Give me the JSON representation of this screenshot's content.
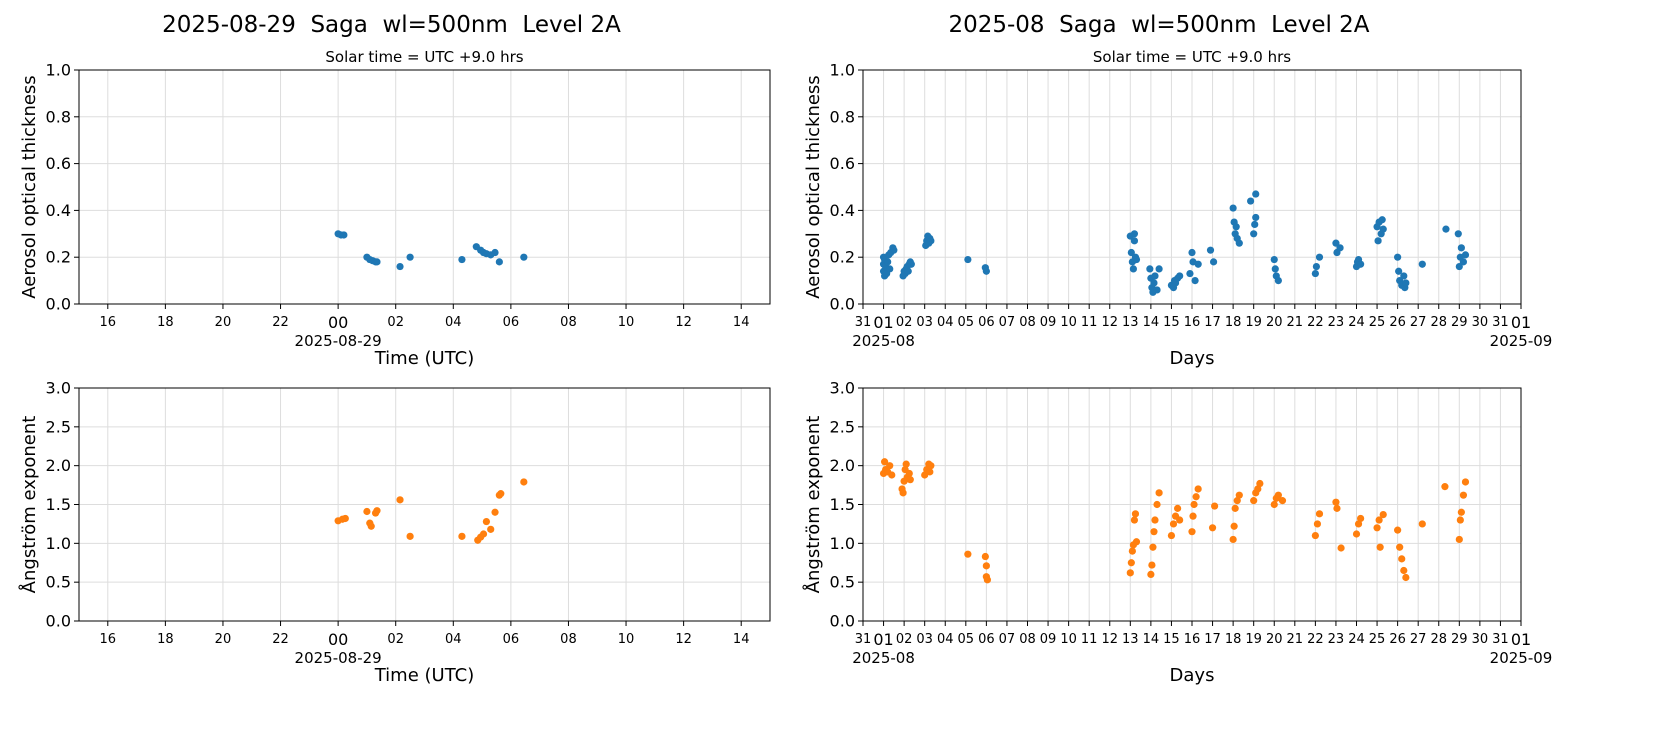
{
  "chart_data": [
    {
      "type": "scatter",
      "title": "2025-08-29  Saga  wl=500nm  Level 2A",
      "subtitle": "Solar time = UTC +9.0 hrs",
      "xlabel": "Time (UTC)",
      "ylabel": "Aerosol optical thickness",
      "color": "#1f77b4",
      "grid": true,
      "xlim": [
        -9,
        15
      ],
      "ylim": [
        0,
        1
      ],
      "xticks": [
        {
          "value": -8,
          "label": "16"
        },
        {
          "value": -6,
          "label": "18"
        },
        {
          "value": -4,
          "label": "20"
        },
        {
          "value": -2,
          "label": "22"
        },
        {
          "value": 0,
          "label": "00"
        },
        {
          "value": 2,
          "label": "02"
        },
        {
          "value": 4,
          "label": "04"
        },
        {
          "value": 6,
          "label": "06"
        },
        {
          "value": 8,
          "label": "08"
        },
        10,
        12,
        14
      ],
      "x_date_labels": [
        {
          "value": 0,
          "label": "2025-08-29"
        }
      ],
      "yticks": [
        {
          "value": 0,
          "label": "0.0"
        },
        0.2,
        0.4,
        0.6,
        0.8,
        {
          "value": 1,
          "label": "1.0"
        }
      ],
      "x": [
        0.0,
        0.1,
        0.2,
        1.0,
        1.1,
        1.2,
        1.3,
        1.35,
        2.15,
        2.5,
        4.3,
        4.8,
        4.95,
        5.05,
        5.15,
        5.3,
        5.45,
        5.6,
        6.45
      ],
      "values": [
        0.3,
        0.295,
        0.295,
        0.2,
        0.19,
        0.185,
        0.18,
        0.18,
        0.16,
        0.2,
        0.19,
        0.245,
        0.23,
        0.22,
        0.215,
        0.21,
        0.22,
        0.18,
        0.2
      ]
    },
    {
      "type": "scatter",
      "title": "2025-08  Saga  wl=500nm  Level 2A",
      "subtitle": "Solar time = UTC +9.0 hrs",
      "xlabel": "Days",
      "ylabel": "Aerosol optical thickness",
      "color": "#1f77b4",
      "grid": true,
      "xlim": [
        0,
        32
      ],
      "ylim": [
        0,
        1
      ],
      "xticks": [
        {
          "value": 0,
          "label": "31"
        },
        {
          "value": 1,
          "label": "01"
        },
        {
          "value": 2,
          "label": "02"
        },
        {
          "value": 3,
          "label": "03"
        },
        {
          "value": 4,
          "label": "04"
        },
        {
          "value": 5,
          "label": "05"
        },
        {
          "value": 6,
          "label": "06"
        },
        {
          "value": 7,
          "label": "07"
        },
        {
          "value": 8,
          "label": "08"
        },
        {
          "value": 9,
          "label": "09"
        },
        10,
        11,
        12,
        13,
        14,
        15,
        16,
        17,
        18,
        19,
        20,
        21,
        22,
        23,
        24,
        25,
        26,
        27,
        28,
        29,
        30,
        31,
        {
          "value": 32,
          "label": "01"
        }
      ],
      "x_date_labels": [
        {
          "value": 1,
          "label": "2025-08"
        },
        {
          "value": 32,
          "label": "2025-09"
        }
      ],
      "yticks": [
        {
          "value": 0,
          "label": "0.0"
        },
        0.2,
        0.4,
        0.6,
        0.8,
        {
          "value": 1,
          "label": "1.0"
        }
      ],
      "x": [
        1.0,
        1.0,
        1.0,
        1.05,
        1.05,
        1.1,
        1.15,
        1.2,
        1.25,
        1.3,
        1.35,
        1.45,
        1.5,
        1.95,
        2.0,
        2.05,
        2.1,
        2.15,
        2.2,
        2.25,
        2.3,
        2.35,
        3.05,
        3.1,
        3.15,
        3.2,
        3.25,
        3.3,
        5.1,
        5.95,
        6.0,
        13.0,
        13.05,
        13.1,
        13.15,
        13.2,
        13.2,
        13.25,
        13.3,
        13.95,
        14.0,
        14.05,
        14.1,
        14.15,
        14.2,
        14.3,
        14.4,
        15.0,
        15.1,
        15.15,
        15.2,
        15.3,
        15.4,
        15.9,
        16.0,
        16.05,
        16.15,
        16.3,
        16.9,
        17.05,
        18.0,
        18.05,
        18.1,
        18.15,
        18.2,
        18.3,
        18.85,
        19.0,
        19.05,
        19.1,
        19.1,
        20.0,
        20.05,
        20.1,
        20.2,
        22.0,
        22.05,
        22.2,
        23.0,
        23.05,
        23.2,
        24.0,
        24.05,
        24.1,
        24.2,
        25.0,
        25.05,
        25.1,
        25.2,
        25.25,
        25.3,
        26.0,
        26.05,
        26.1,
        26.2,
        26.3,
        26.35,
        26.4,
        27.2,
        28.35,
        28.95,
        29.0,
        29.05,
        29.1,
        29.2,
        29.3
      ],
      "values": [
        0.2,
        0.17,
        0.14,
        0.12,
        0.19,
        0.16,
        0.13,
        0.18,
        0.21,
        0.15,
        0.22,
        0.24,
        0.23,
        0.12,
        0.14,
        0.13,
        0.15,
        0.16,
        0.14,
        0.17,
        0.18,
        0.17,
        0.25,
        0.27,
        0.29,
        0.26,
        0.28,
        0.27,
        0.19,
        0.155,
        0.14,
        0.29,
        0.22,
        0.18,
        0.15,
        0.3,
        0.27,
        0.2,
        0.19,
        0.15,
        0.11,
        0.07,
        0.05,
        0.09,
        0.12,
        0.06,
        0.15,
        0.08,
        0.07,
        0.1,
        0.09,
        0.11,
        0.12,
        0.13,
        0.22,
        0.18,
        0.1,
        0.17,
        0.23,
        0.18,
        0.41,
        0.35,
        0.3,
        0.33,
        0.28,
        0.26,
        0.44,
        0.3,
        0.34,
        0.37,
        0.47,
        0.19,
        0.15,
        0.12,
        0.1,
        0.13,
        0.16,
        0.2,
        0.26,
        0.22,
        0.24,
        0.16,
        0.18,
        0.19,
        0.17,
        0.33,
        0.27,
        0.35,
        0.3,
        0.36,
        0.32,
        0.2,
        0.14,
        0.1,
        0.08,
        0.12,
        0.07,
        0.09,
        0.17,
        0.32,
        0.3,
        0.16,
        0.2,
        0.24,
        0.18,
        0.21
      ]
    },
    {
      "type": "scatter",
      "xlabel": "Time (UTC)",
      "ylabel": "Ångström exponent",
      "color": "#ff7f0e",
      "grid": true,
      "xlim": [
        -9,
        15
      ],
      "ylim": [
        0,
        3
      ],
      "xticks": [
        {
          "value": -8,
          "label": "16"
        },
        {
          "value": -6,
          "label": "18"
        },
        {
          "value": -4,
          "label": "20"
        },
        {
          "value": -2,
          "label": "22"
        },
        {
          "value": 0,
          "label": "00"
        },
        {
          "value": 2,
          "label": "02"
        },
        {
          "value": 4,
          "label": "04"
        },
        {
          "value": 6,
          "label": "06"
        },
        {
          "value": 8,
          "label": "08"
        },
        10,
        12,
        14
      ],
      "x_date_labels": [
        {
          "value": 0,
          "label": "2025-08-29"
        }
      ],
      "yticks": [
        {
          "value": 0,
          "label": "0.0"
        },
        0.5,
        {
          "value": 1,
          "label": "1.0"
        },
        1.5,
        {
          "value": 2,
          "label": "2.0"
        },
        2.5,
        {
          "value": 3,
          "label": "3.0"
        }
      ],
      "x": [
        0.0,
        0.15,
        0.25,
        1.0,
        1.1,
        1.15,
        1.3,
        1.35,
        2.15,
        2.5,
        4.3,
        4.85,
        4.95,
        5.05,
        5.15,
        5.3,
        5.45,
        5.6,
        5.65,
        6.45
      ],
      "values": [
        1.29,
        1.31,
        1.32,
        1.41,
        1.26,
        1.22,
        1.39,
        1.42,
        1.56,
        1.09,
        1.09,
        1.04,
        1.08,
        1.12,
        1.28,
        1.18,
        1.4,
        1.62,
        1.64,
        1.79
      ]
    },
    {
      "type": "scatter",
      "xlabel": "Days",
      "ylabel": "Ångström exponent",
      "color": "#ff7f0e",
      "grid": true,
      "xlim": [
        0,
        32
      ],
      "ylim": [
        0,
        3
      ],
      "xticks": [
        {
          "value": 0,
          "label": "31"
        },
        {
          "value": 1,
          "label": "01"
        },
        {
          "value": 2,
          "label": "02"
        },
        {
          "value": 3,
          "label": "03"
        },
        {
          "value": 4,
          "label": "04"
        },
        {
          "value": 5,
          "label": "05"
        },
        {
          "value": 6,
          "label": "06"
        },
        {
          "value": 7,
          "label": "07"
        },
        {
          "value": 8,
          "label": "08"
        },
        {
          "value": 9,
          "label": "09"
        },
        10,
        11,
        12,
        13,
        14,
        15,
        16,
        17,
        18,
        19,
        20,
        21,
        22,
        23,
        24,
        25,
        26,
        27,
        28,
        29,
        30,
        31,
        {
          "value": 32,
          "label": "01"
        }
      ],
      "x_date_labels": [
        {
          "value": 1,
          "label": "2025-08"
        },
        {
          "value": 32,
          "label": "2025-09"
        }
      ],
      "yticks": [
        {
          "value": 0,
          "label": "0.0"
        },
        0.5,
        {
          "value": 1,
          "label": "1.0"
        },
        1.5,
        {
          "value": 2,
          "label": "2.0"
        },
        2.5,
        {
          "value": 3,
          "label": "3.0"
        }
      ],
      "x": [
        1.0,
        1.05,
        1.1,
        1.2,
        1.3,
        1.4,
        1.9,
        1.95,
        2.0,
        2.05,
        2.1,
        2.15,
        2.25,
        2.3,
        3.0,
        3.1,
        3.2,
        3.25,
        3.3,
        5.1,
        5.95,
        6.0,
        6.0,
        6.05,
        13.0,
        13.05,
        13.1,
        13.15,
        13.2,
        13.25,
        13.3,
        14.0,
        14.05,
        14.1,
        14.15,
        14.2,
        14.3,
        14.4,
        15.0,
        15.1,
        15.2,
        15.3,
        15.4,
        16.0,
        16.05,
        16.1,
        16.2,
        16.3,
        17.0,
        17.1,
        18.0,
        18.05,
        18.1,
        18.2,
        18.3,
        19.0,
        19.1,
        19.2,
        19.3,
        20.0,
        20.1,
        20.2,
        20.4,
        22.0,
        22.1,
        22.2,
        23.0,
        23.05,
        23.25,
        24.0,
        24.1,
        24.2,
        25.0,
        25.1,
        25.15,
        25.3,
        26.0,
        26.1,
        26.2,
        26.3,
        26.4,
        27.2,
        28.3,
        29.0,
        29.05,
        29.1,
        29.2,
        29.3
      ],
      "values": [
        1.9,
        2.05,
        1.95,
        1.92,
        2.0,
        1.88,
        1.7,
        1.65,
        1.8,
        1.95,
        2.02,
        1.85,
        1.9,
        1.82,
        1.88,
        1.95,
        2.02,
        1.92,
        2.0,
        0.86,
        0.83,
        0.71,
        0.57,
        0.53,
        0.62,
        0.75,
        0.9,
        0.98,
        1.3,
        1.38,
        1.02,
        0.6,
        0.72,
        0.95,
        1.15,
        1.3,
        1.5,
        1.65,
        1.1,
        1.25,
        1.35,
        1.45,
        1.3,
        1.15,
        1.35,
        1.5,
        1.6,
        1.7,
        1.2,
        1.48,
        1.05,
        1.22,
        1.45,
        1.55,
        1.62,
        1.55,
        1.65,
        1.7,
        1.77,
        1.5,
        1.58,
        1.62,
        1.55,
        1.1,
        1.25,
        1.38,
        1.53,
        1.45,
        0.94,
        1.12,
        1.25,
        1.32,
        1.2,
        1.3,
        0.95,
        1.37,
        1.17,
        0.95,
        0.8,
        0.65,
        0.56,
        1.25,
        1.73,
        1.05,
        1.3,
        1.4,
        1.62,
        1.79
      ]
    }
  ]
}
